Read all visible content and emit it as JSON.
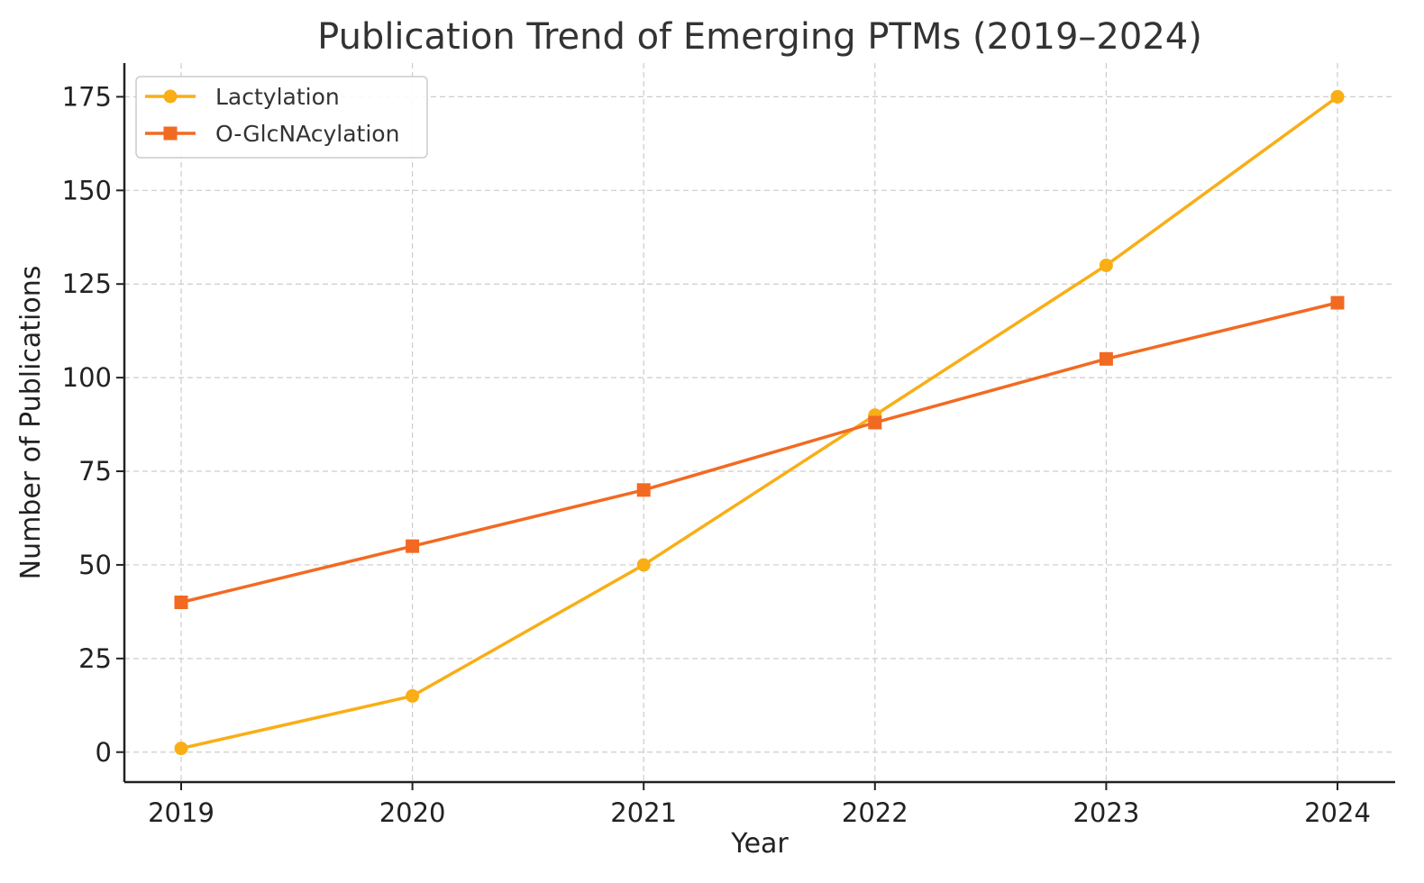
{
  "chart_data": {
    "type": "line",
    "title": "Publication Trend of Emerging PTMs (2019–2024)",
    "xlabel": "Year",
    "ylabel": "Number of Publications",
    "x": [
      "2019",
      "2020",
      "2021",
      "2022",
      "2023",
      "2024"
    ],
    "yticks": [
      "0",
      "25",
      "50",
      "75",
      "100",
      "125",
      "150",
      "175"
    ],
    "ylim": [
      -8,
      184
    ],
    "grid": true,
    "legend_position": "top-left",
    "series": [
      {
        "name": "Lactylation",
        "values": [
          1,
          15,
          50,
          90,
          130,
          175
        ],
        "color": "#F9AE16",
        "marker": "circle"
      },
      {
        "name": "O-GlcNAcylation",
        "values": [
          40,
          55,
          70,
          88,
          105,
          120
        ],
        "color": "#F26A22",
        "marker": "square"
      }
    ]
  }
}
